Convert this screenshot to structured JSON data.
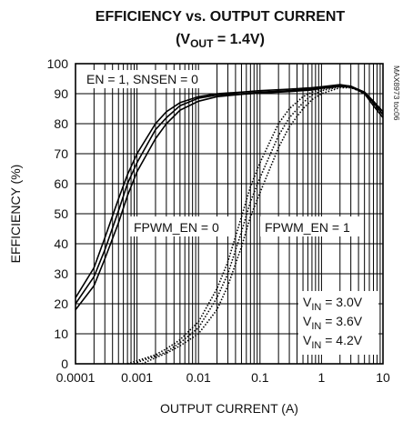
{
  "chart_data": {
    "type": "line",
    "title": "EFFICIENCY vs. OUTPUT CURRENT",
    "subtitle": {
      "prefix": "(V",
      "sub": "OUT",
      "suffix": " = 1.4V)"
    },
    "xlabel": "OUTPUT CURRENT (A)",
    "ylabel": "EFFICIENCY (%)",
    "x_scale": "log",
    "xlim": [
      0.0001,
      10
    ],
    "ylim": [
      0,
      100
    ],
    "x_ticks": [
      "0.0001",
      "0.001",
      "0.01",
      "0.1",
      "1",
      "10"
    ],
    "y_ticks": [
      "0",
      "10",
      "20",
      "30",
      "40",
      "50",
      "60",
      "70",
      "80",
      "90",
      "100"
    ],
    "grid": true,
    "part_number": "MAX8973 toc06",
    "annotations": {
      "condition": "EN = 1, SNSEN = 0",
      "fpwm0": "FPWM_EN = 0",
      "fpwm1": "FPWM_EN = 1"
    },
    "legend": [
      {
        "v": "V",
        "sub": "IN",
        "rest": " = 3.0V"
      },
      {
        "v": "V",
        "sub": "IN",
        "rest": " = 3.6V"
      },
      {
        "v": "V",
        "sub": "IN",
        "rest": " = 4.2V"
      }
    ],
    "series": [
      {
        "group": "FPWM_EN = 0",
        "vin": "3.0V",
        "style": "solid",
        "points": [
          [
            0.0001,
            22
          ],
          [
            0.0002,
            32
          ],
          [
            0.0003,
            42
          ],
          [
            0.0005,
            55
          ],
          [
            0.0007,
            63
          ],
          [
            0.001,
            70
          ],
          [
            0.002,
            80
          ],
          [
            0.003,
            84
          ],
          [
            0.005,
            87
          ],
          [
            0.01,
            89
          ],
          [
            0.02,
            90
          ],
          [
            0.05,
            90.5
          ],
          [
            0.1,
            91
          ],
          [
            0.3,
            91.5
          ],
          [
            0.7,
            92
          ],
          [
            1,
            92.3
          ],
          [
            2,
            93
          ],
          [
            3,
            92.5
          ],
          [
            5,
            90
          ],
          [
            7,
            86
          ],
          [
            10,
            82
          ]
        ]
      },
      {
        "group": "FPWM_EN = 0",
        "vin": "3.6V",
        "style": "solid",
        "points": [
          [
            0.0001,
            20
          ],
          [
            0.0002,
            29
          ],
          [
            0.0003,
            38
          ],
          [
            0.0005,
            51
          ],
          [
            0.0007,
            60
          ],
          [
            0.001,
            67
          ],
          [
            0.002,
            78
          ],
          [
            0.003,
            82
          ],
          [
            0.005,
            86
          ],
          [
            0.01,
            88.5
          ],
          [
            0.02,
            89.5
          ],
          [
            0.05,
            90
          ],
          [
            0.1,
            90.5
          ],
          [
            0.3,
            91
          ],
          [
            0.7,
            91.6
          ],
          [
            1,
            92
          ],
          [
            2,
            92.8
          ],
          [
            3,
            92.5
          ],
          [
            5,
            90.5
          ],
          [
            7,
            87
          ],
          [
            10,
            83
          ]
        ]
      },
      {
        "group": "FPWM_EN = 0",
        "vin": "4.2V",
        "style": "solid",
        "points": [
          [
            0.0001,
            18
          ],
          [
            0.0002,
            26
          ],
          [
            0.0003,
            35
          ],
          [
            0.0005,
            47
          ],
          [
            0.0007,
            56
          ],
          [
            0.001,
            64
          ],
          [
            0.002,
            75
          ],
          [
            0.003,
            80
          ],
          [
            0.005,
            84.5
          ],
          [
            0.01,
            87.5
          ],
          [
            0.02,
            89
          ],
          [
            0.05,
            89.8
          ],
          [
            0.1,
            90.2
          ],
          [
            0.3,
            90.7
          ],
          [
            0.7,
            91.2
          ],
          [
            1,
            91.8
          ],
          [
            2,
            92.5
          ],
          [
            3,
            92.3
          ],
          [
            5,
            90.5
          ],
          [
            7,
            87.5
          ],
          [
            10,
            84
          ]
        ]
      },
      {
        "group": "FPWM_EN = 1",
        "vin": "3.0V",
        "style": "dotted",
        "points": [
          [
            0.0007,
            0
          ],
          [
            0.001,
            1
          ],
          [
            0.002,
            3
          ],
          [
            0.003,
            5
          ],
          [
            0.005,
            8
          ],
          [
            0.01,
            14
          ],
          [
            0.02,
            25
          ],
          [
            0.03,
            34
          ],
          [
            0.05,
            49
          ],
          [
            0.07,
            59
          ],
          [
            0.1,
            67
          ],
          [
            0.2,
            80
          ],
          [
            0.3,
            85
          ],
          [
            0.5,
            89
          ],
          [
            0.7,
            90.5
          ],
          [
            1,
            91.5
          ],
          [
            2,
            92.5
          ],
          [
            3,
            92.2
          ],
          [
            5,
            90
          ],
          [
            7,
            86.5
          ],
          [
            10,
            83
          ]
        ]
      },
      {
        "group": "FPWM_EN = 1",
        "vin": "3.6V",
        "style": "dotted",
        "points": [
          [
            0.0009,
            0
          ],
          [
            0.001,
            0.5
          ],
          [
            0.002,
            2.5
          ],
          [
            0.003,
            4
          ],
          [
            0.005,
            7
          ],
          [
            0.01,
            12
          ],
          [
            0.02,
            22
          ],
          [
            0.03,
            30
          ],
          [
            0.05,
            44
          ],
          [
            0.07,
            54
          ],
          [
            0.1,
            62
          ],
          [
            0.2,
            76
          ],
          [
            0.3,
            82
          ],
          [
            0.5,
            87
          ],
          [
            0.7,
            89.5
          ],
          [
            1,
            91
          ],
          [
            2,
            92.3
          ],
          [
            3,
            92
          ],
          [
            5,
            90.2
          ],
          [
            7,
            87
          ],
          [
            10,
            83.5
          ]
        ]
      },
      {
        "group": "FPWM_EN = 1",
        "vin": "4.2V",
        "style": "dotted",
        "points": [
          [
            0.0012,
            0
          ],
          [
            0.002,
            2
          ],
          [
            0.003,
            3.5
          ],
          [
            0.005,
            6
          ],
          [
            0.01,
            10
          ],
          [
            0.02,
            18
          ],
          [
            0.03,
            26
          ],
          [
            0.05,
            39
          ],
          [
            0.07,
            49
          ],
          [
            0.1,
            57
          ],
          [
            0.2,
            72
          ],
          [
            0.3,
            79
          ],
          [
            0.5,
            85
          ],
          [
            0.7,
            88
          ],
          [
            1,
            90
          ],
          [
            2,
            92
          ],
          [
            3,
            92
          ],
          [
            5,
            90.5
          ],
          [
            7,
            87.5
          ],
          [
            10,
            84
          ]
        ]
      }
    ]
  }
}
